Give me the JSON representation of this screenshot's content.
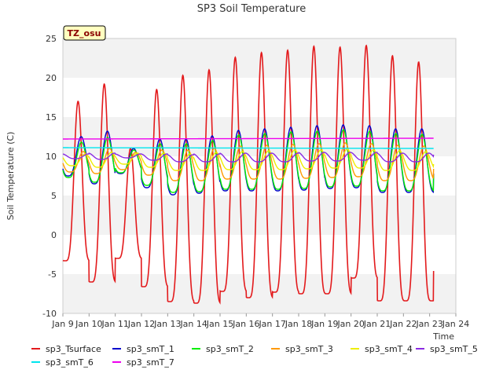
{
  "chart_data": {
    "type": "line",
    "title": "SP3 Soil Temperature",
    "xlabel": "Time",
    "ylabel": "Soil Temperature (C)",
    "badge": "TZ_osu",
    "ylim": [
      -10,
      25
    ],
    "xlim": [
      9,
      24
    ],
    "y_ticks": [
      -10,
      -5,
      0,
      5,
      10,
      15,
      20,
      25
    ],
    "x_ticks": [
      {
        "v": 9,
        "label": "Jan 9"
      },
      {
        "v": 10,
        "label": "Jan 10"
      },
      {
        "v": 11,
        "label": "Jan 11"
      },
      {
        "v": 12,
        "label": "Jan 12"
      },
      {
        "v": 13,
        "label": "Jan 13"
      },
      {
        "v": 14,
        "label": "Jan 14"
      },
      {
        "v": 15,
        "label": "Jan 15"
      },
      {
        "v": 16,
        "label": "Jan 16"
      },
      {
        "v": 17,
        "label": "Jan 17"
      },
      {
        "v": 18,
        "label": "Jan 18"
      },
      {
        "v": 19,
        "label": "Jan 19"
      },
      {
        "v": 20,
        "label": "Jan 20"
      },
      {
        "v": 21,
        "label": "Jan 21"
      },
      {
        "v": 22,
        "label": "Jan 22"
      },
      {
        "v": 23,
        "label": "Jan 23"
      },
      {
        "v": 24,
        "label": "Jan 24"
      }
    ],
    "grid": "horizontal bands",
    "legend_placement": "bottom",
    "x_range_data": [
      9.0,
      23.15
    ],
    "series": [
      {
        "name": "sp3_Tsurface",
        "color": "#e31a1c",
        "daily_max": [
          17.0,
          19.2,
          11.0,
          18.5,
          20.3,
          21.0,
          22.6,
          23.2,
          23.5,
          24.0,
          23.9,
          24.1,
          22.8,
          22.0
        ],
        "daily_min": [
          -3.3,
          -6.0,
          -3.0,
          -6.6,
          -8.5,
          -8.7,
          -7.2,
          -8.0,
          -7.3,
          -7.5,
          -7.5,
          -5.5,
          -8.4,
          -8.4
        ],
        "end_value": -4.6
      },
      {
        "name": "sp3_smT_1",
        "color": "#0000cc",
        "daily_max": [
          12.5,
          13.2,
          11.0,
          12.2,
          12.2,
          12.6,
          13.3,
          13.5,
          13.7,
          13.9,
          14.0,
          13.9,
          13.5,
          13.5
        ],
        "daily_min": [
          7.5,
          6.5,
          7.8,
          6.0,
          5.1,
          5.3,
          5.6,
          5.6,
          5.6,
          5.7,
          5.9,
          6.0,
          5.4,
          5.4
        ],
        "end_value": 7.8
      },
      {
        "name": "sp3_smT_2",
        "color": "#00ee00",
        "daily_max": [
          11.8,
          12.4,
          10.8,
          11.6,
          11.6,
          12.0,
          12.7,
          12.9,
          13.1,
          13.2,
          13.4,
          13.2,
          12.9,
          12.8
        ],
        "daily_min": [
          7.3,
          6.7,
          7.9,
          6.3,
          5.4,
          5.5,
          5.8,
          5.8,
          5.8,
          5.9,
          6.1,
          6.2,
          5.6,
          5.6
        ],
        "end_value": 7.6
      },
      {
        "name": "sp3_smT_3",
        "color": "#ff9900",
        "daily_max": [
          10.6,
          11.0,
          10.5,
          10.8,
          10.8,
          11.0,
          11.3,
          11.4,
          11.5,
          11.6,
          11.7,
          11.6,
          11.4,
          11.3
        ],
        "daily_min": [
          8.0,
          7.8,
          8.3,
          7.6,
          6.9,
          6.9,
          7.1,
          7.1,
          7.1,
          7.2,
          7.3,
          7.4,
          6.9,
          6.9
        ],
        "end_value": 8.4
      },
      {
        "name": "sp3_smT_4",
        "color": "#eeee00",
        "daily_max": [
          10.3,
          10.5,
          10.4,
          10.4,
          10.3,
          10.5,
          10.6,
          10.7,
          10.8,
          10.8,
          10.9,
          10.8,
          10.7,
          10.6
        ],
        "daily_min": [
          8.8,
          8.6,
          9.0,
          8.6,
          8.2,
          8.2,
          8.3,
          8.3,
          8.3,
          8.4,
          8.5,
          8.5,
          8.2,
          8.2
        ],
        "end_value": 9.0
      },
      {
        "name": "sp3_smT_5",
        "color": "#8a2be2",
        "daily_max": [
          10.3,
          10.4,
          10.3,
          10.3,
          10.2,
          10.3,
          10.4,
          10.4,
          10.4,
          10.5,
          10.5,
          10.5,
          10.4,
          10.4
        ],
        "daily_min": [
          9.7,
          9.6,
          9.8,
          9.5,
          9.3,
          9.3,
          9.3,
          9.3,
          9.3,
          9.4,
          9.4,
          9.5,
          9.3,
          9.3
        ],
        "end_value": 10.2
      },
      {
        "name": "sp3_smT_6",
        "color": "#00e5ee",
        "start_value": 11.1,
        "end_value": 11.0
      },
      {
        "name": "sp3_smT_7",
        "color": "#ee00ee",
        "start_value": 12.2,
        "end_value": 12.3
      }
    ]
  }
}
